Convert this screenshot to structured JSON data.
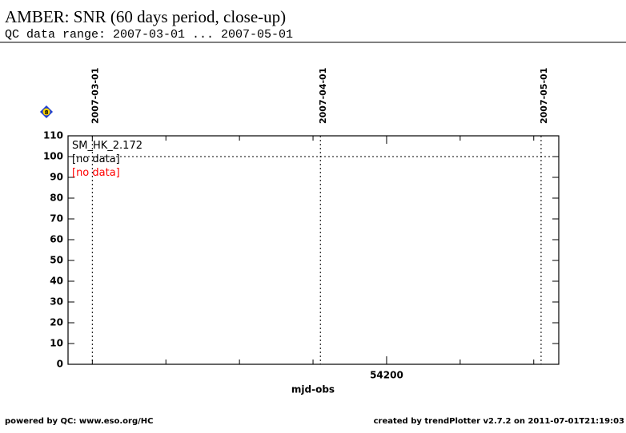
{
  "header": {
    "title": "AMBER: SNR (60 days period, close-up)",
    "subtitle": "QC data range: 2007-03-01 ... 2007-05-01"
  },
  "chart_data": {
    "type": "line",
    "xlabel": "mjd-obs",
    "xlim": [
      54156.7,
      54223.4
    ],
    "xticks": [
      54200
    ],
    "xminor_ticks": [
      54160,
      54170,
      54180,
      54190,
      54210,
      54220
    ],
    "ylim": [
      0,
      110
    ],
    "yticks": [
      0,
      10,
      20,
      30,
      40,
      50,
      60,
      70,
      80,
      90,
      100,
      110
    ],
    "hline": 100,
    "vlines": [
      {
        "x": 54160,
        "label": "2007-03-01"
      },
      {
        "x": 54191,
        "label": "2007-04-01"
      },
      {
        "x": 54221,
        "label": "2007-05-01"
      }
    ],
    "legend": [
      {
        "label": "SM_HK_2.172",
        "color": "#000000"
      },
      {
        "label": "[no data]",
        "color": "#000000"
      },
      {
        "label": "[no data]",
        "color": "#ff0000"
      }
    ],
    "icon_label": "8"
  },
  "footer": {
    "left": "powered by QC: www.eso.org/HC",
    "right": "created by trendPlotter v2.7.2 on 2011-07-01T21:19:03"
  }
}
